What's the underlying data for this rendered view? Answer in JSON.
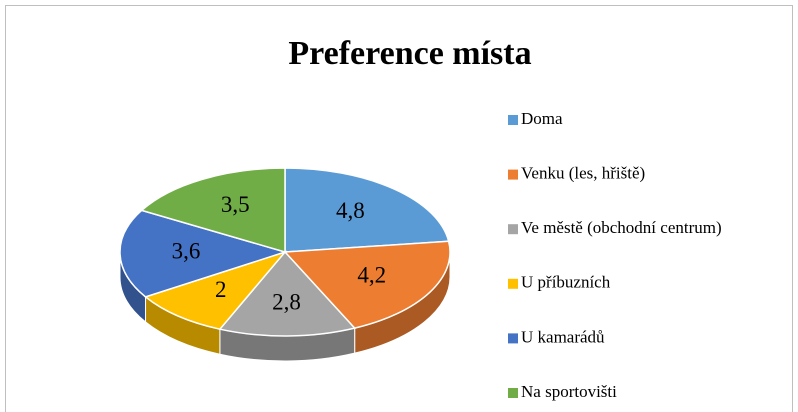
{
  "chart_data": {
    "type": "pie",
    "title": "Preference místa",
    "categories": [
      "Doma",
      "Venku (les, hřiště)",
      "Ve městě (obchodní centrum)",
      "U příbuzních",
      "U kamarádů",
      "Na sportovišti"
    ],
    "values": [
      4.8,
      4.2,
      2.8,
      2,
      3.6,
      3.5
    ],
    "value_labels": [
      "4,8",
      "4,2",
      "2,8",
      "2",
      "3,6",
      "3,5"
    ],
    "colors": [
      "#5b9bd5",
      "#ed7d31",
      "#a5a5a5",
      "#ffc000",
      "#4472c4",
      "#70ad47"
    ],
    "legend": "right"
  }
}
